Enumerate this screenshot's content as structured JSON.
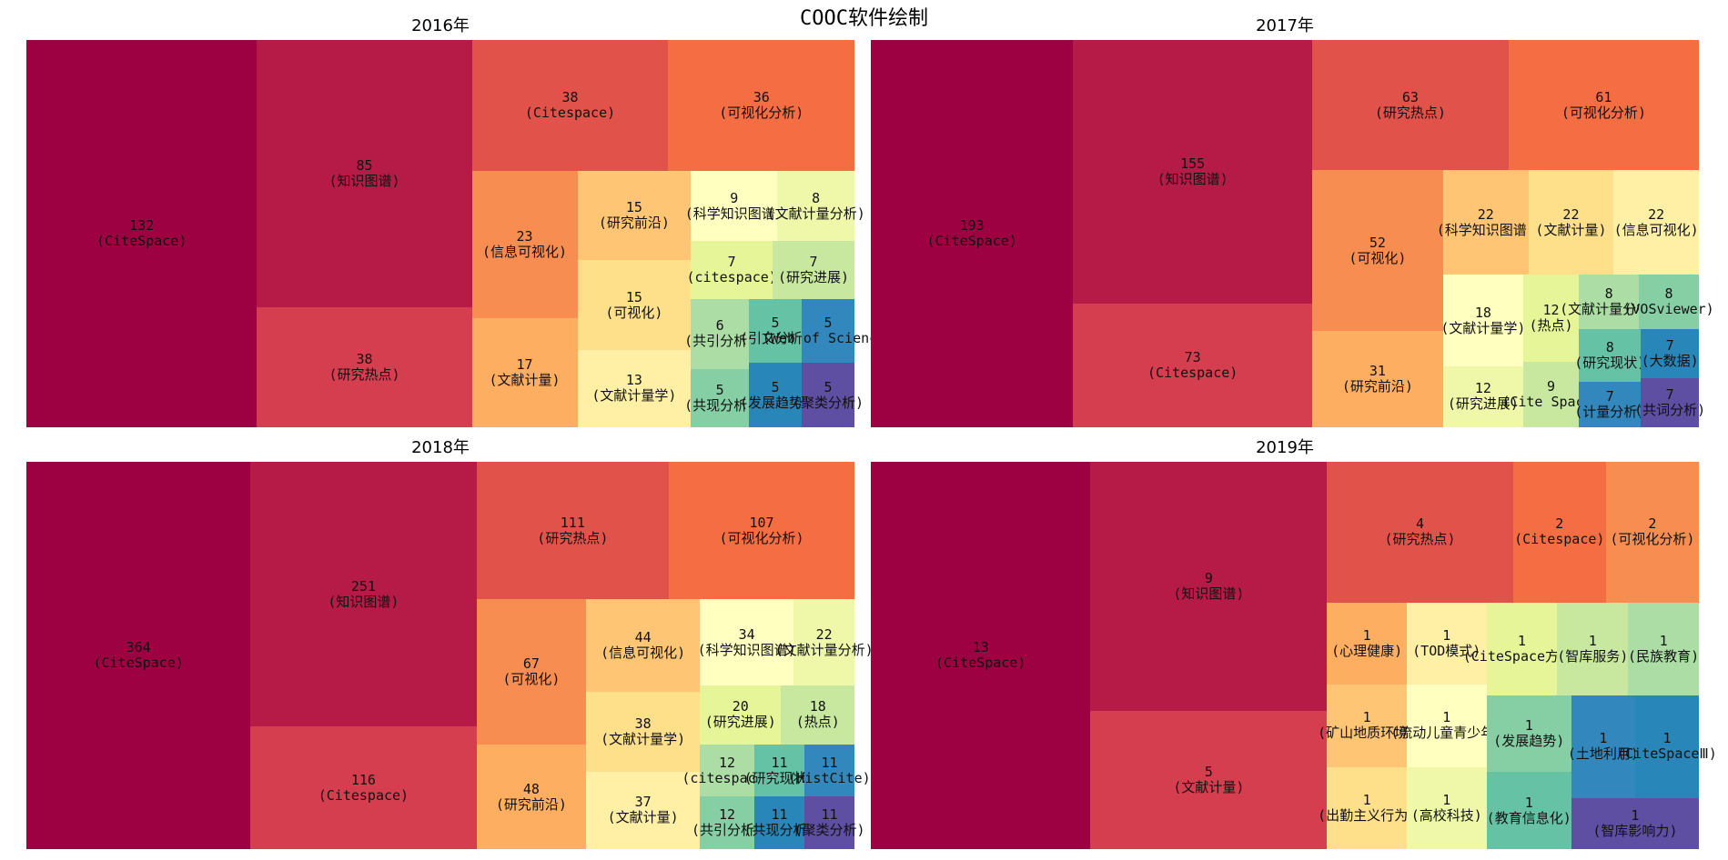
{
  "figure": {
    "title": "COOC软件绘制"
  },
  "palette": [
    "#9e0142",
    "#b51b46",
    "#d53e4f",
    "#e1524a",
    "#f46d43",
    "#f88d51",
    "#fdae61",
    "#fec574",
    "#fee08b",
    "#fff0a6",
    "#ffffbf",
    "#eef8a8",
    "#e6f598",
    "#c7e89e",
    "#abdda4",
    "#86cea4",
    "#66c2a5",
    "#3288bd",
    "#2886b8",
    "#5e4fa2"
  ],
  "chart_data": [
    {
      "type": "treemap",
      "title": "2016年",
      "items": [
        {
          "value": 132,
          "label": "(CiteSpace)"
        },
        {
          "value": 85,
          "label": "(知识图谱)"
        },
        {
          "value": 38,
          "label": "(研究热点)"
        },
        {
          "value": 38,
          "label": "(Citespace)"
        },
        {
          "value": 36,
          "label": "(可视化分析)"
        },
        {
          "value": 23,
          "label": "(信息可视化)"
        },
        {
          "value": 17,
          "label": "(文献计量)"
        },
        {
          "value": 15,
          "label": "(研究前沿)"
        },
        {
          "value": 15,
          "label": "(可视化)"
        },
        {
          "value": 13,
          "label": "(文献计量学)"
        },
        {
          "value": 9,
          "label": "(科学知识图谱)"
        },
        {
          "value": 8,
          "label": "(文献计量分析)"
        },
        {
          "value": 7,
          "label": "(citespace)"
        },
        {
          "value": 7,
          "label": "(研究进展)"
        },
        {
          "value": 6,
          "label": "(共引分析)"
        },
        {
          "value": 5,
          "label": "(共现分析)"
        },
        {
          "value": 5,
          "label": "(引文分析)"
        },
        {
          "value": 5,
          "label": "(Web of Science)"
        },
        {
          "value": 5,
          "label": "(发展趋势)"
        },
        {
          "value": 5,
          "label": "(聚类分析)"
        }
      ]
    },
    {
      "type": "treemap",
      "title": "2017年",
      "items": [
        {
          "value": 193,
          "label": "(CiteSpace)"
        },
        {
          "value": 155,
          "label": "(知识图谱)"
        },
        {
          "value": 73,
          "label": "(Citespace)"
        },
        {
          "value": 63,
          "label": "(研究热点)"
        },
        {
          "value": 61,
          "label": "(可视化分析)"
        },
        {
          "value": 52,
          "label": "(可视化)"
        },
        {
          "value": 31,
          "label": "(研究前沿)"
        },
        {
          "value": 22,
          "label": "(科学知识图谱)"
        },
        {
          "value": 22,
          "label": "(文献计量)"
        },
        {
          "value": 22,
          "label": "(信息可视化)"
        },
        {
          "value": 18,
          "label": "(文献计量学)"
        },
        {
          "value": 12,
          "label": "(研究进展)"
        },
        {
          "value": 12,
          "label": "(热点)"
        },
        {
          "value": 9,
          "label": "(Cite Space)"
        },
        {
          "value": 8,
          "label": "(文献计量分析)"
        },
        {
          "value": 8,
          "label": "(VOSviewer)"
        },
        {
          "value": 8,
          "label": "(研究现状)"
        },
        {
          "value": 7,
          "label": "(计量分析)"
        },
        {
          "value": 7,
          "label": "(大数据)"
        },
        {
          "value": 7,
          "label": "(共词分析)"
        }
      ]
    },
    {
      "type": "treemap",
      "title": "2018年",
      "items": [
        {
          "value": 364,
          "label": "(CiteSpace)"
        },
        {
          "value": 251,
          "label": "(知识图谱)"
        },
        {
          "value": 116,
          "label": "(Citespace)"
        },
        {
          "value": 111,
          "label": "(研究热点)"
        },
        {
          "value": 107,
          "label": "(可视化分析)"
        },
        {
          "value": 67,
          "label": "(可视化)"
        },
        {
          "value": 48,
          "label": "(研究前沿)"
        },
        {
          "value": 44,
          "label": "(信息可视化)"
        },
        {
          "value": 38,
          "label": "(文献计量学)"
        },
        {
          "value": 37,
          "label": "(文献计量)"
        },
        {
          "value": 34,
          "label": "(科学知识图谱)"
        },
        {
          "value": 22,
          "label": "(文献计量分析)"
        },
        {
          "value": 20,
          "label": "(研究进展)"
        },
        {
          "value": 18,
          "label": "(热点)"
        },
        {
          "value": 12,
          "label": "(citespace)"
        },
        {
          "value": 12,
          "label": "(共引分析)"
        },
        {
          "value": 11,
          "label": "(研究现状)"
        },
        {
          "value": 11,
          "label": "(HistCite)"
        },
        {
          "value": 11,
          "label": "(共现分析)"
        },
        {
          "value": 11,
          "label": "(聚类分析)"
        }
      ]
    },
    {
      "type": "treemap",
      "title": "2019年",
      "items": [
        {
          "value": 13,
          "label": "(CiteSpace)"
        },
        {
          "value": 9,
          "label": "(知识图谱)"
        },
        {
          "value": 5,
          "label": "(文献计量)"
        },
        {
          "value": 4,
          "label": "(研究热点)"
        },
        {
          "value": 2,
          "label": "(Citespace)"
        },
        {
          "value": 2,
          "label": "(可视化分析)"
        },
        {
          "value": 1,
          "label": "(心理健康)"
        },
        {
          "value": 1,
          "label": "(矿山地质环境)"
        },
        {
          "value": 1,
          "label": "(出勤主义行为)"
        },
        {
          "value": 1,
          "label": "(TOD模式)"
        },
        {
          "value": 1,
          "label": "(流动儿童青少年)"
        },
        {
          "value": 1,
          "label": "(高校科技)"
        },
        {
          "value": 1,
          "label": "(CiteSpace方法)"
        },
        {
          "value": 1,
          "label": "(智库服务)"
        },
        {
          "value": 1,
          "label": "(民族教育)"
        },
        {
          "value": 1,
          "label": "(发展趋势)"
        },
        {
          "value": 1,
          "label": "(教育信息化)"
        },
        {
          "value": 1,
          "label": "(土地利用)"
        },
        {
          "value": 1,
          "label": "(CiteSpaceⅢ)"
        },
        {
          "value": 1,
          "label": "(智库影响力)"
        }
      ]
    }
  ]
}
